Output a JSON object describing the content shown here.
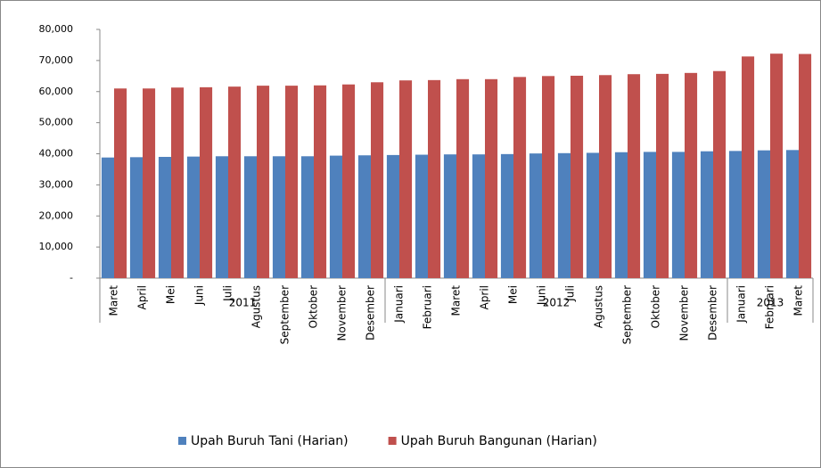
{
  "chart_data": {
    "type": "bar",
    "categories": [
      "Maret",
      "April",
      "Mei",
      "Juni",
      "Juli",
      "Agustus",
      "September",
      "Oktober",
      "November",
      "Desember",
      "Januari",
      "Februari",
      "Maret",
      "April",
      "Mei",
      "Juni",
      "Juli",
      "Agustus",
      "September",
      "Oktober",
      "November",
      "Desember",
      "Januari",
      "Februari",
      "Maret"
    ],
    "group_labels": [
      "2011",
      null,
      null,
      null,
      null,
      null,
      null,
      null,
      null,
      null,
      "2012",
      null,
      null,
      null,
      null,
      null,
      null,
      null,
      null,
      null,
      null,
      null,
      "2013",
      null,
      null
    ],
    "series": [
      {
        "name": "Upah Buruh Tani (Harian)",
        "color": "#4f81bd",
        "values": [
          38800,
          38900,
          39000,
          39100,
          39200,
          39200,
          39200,
          39200,
          39400,
          39500,
          39600,
          39700,
          39800,
          39800,
          39900,
          40100,
          40200,
          40300,
          40500,
          40600,
          40600,
          40800,
          40900,
          41100,
          41200
        ]
      },
      {
        "name": "Upah Buruh Bangunan (Harian)",
        "color": "#c0504d",
        "values": [
          61000,
          61000,
          61300,
          61400,
          61600,
          61900,
          61900,
          62000,
          62300,
          63000,
          63600,
          63700,
          64000,
          64000,
          64700,
          65000,
          65100,
          65300,
          65600,
          65700,
          66000,
          66600,
          71300,
          72200,
          72100
        ]
      }
    ],
    "ylim": [
      0,
      80000
    ],
    "yticks": [
      {
        "value": 0,
        "label": "-"
      },
      {
        "value": 10000,
        "label": "10,000"
      },
      {
        "value": 20000,
        "label": "20,000"
      },
      {
        "value": 30000,
        "label": "30,000"
      },
      {
        "value": 40000,
        "label": "40,000"
      },
      {
        "value": 50000,
        "label": "50,000"
      },
      {
        "value": 60000,
        "label": "60,000"
      },
      {
        "value": 70000,
        "label": "70,000"
      },
      {
        "value": 80000,
        "label": "80,000"
      }
    ],
    "legend": "bottom"
  }
}
